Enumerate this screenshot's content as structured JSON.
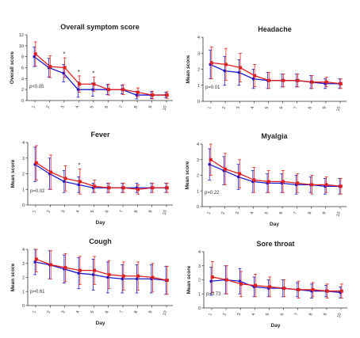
{
  "colors": {
    "series1": "#1c1ccc",
    "series2": "#e02020",
    "axis": "#333333"
  },
  "chart_data": [
    {
      "type": "line",
      "title": "Overall symptom score",
      "xlabel": "",
      "ylabel": "Overall score",
      "ylim": [
        0,
        12
      ],
      "yticks": [
        0,
        2,
        4,
        6,
        8,
        10,
        12
      ],
      "x": [
        1,
        2,
        3,
        4,
        5,
        6,
        7,
        8,
        9,
        10
      ],
      "series": [
        {
          "values": [
            8,
            6,
            5,
            2,
            2,
            2,
            2,
            1,
            1,
            1
          ],
          "err": [
            1.8,
            1.7,
            1.6,
            1.4,
            1.2,
            0.9,
            0.8,
            0.7,
            0.6,
            0.5
          ]
        },
        {
          "values": [
            8.5,
            6.2,
            6,
            3,
            3,
            2,
            2,
            1.5,
            1,
            1
          ],
          "err": [
            2.2,
            2.0,
            1.8,
            1.5,
            1.3,
            1.0,
            0.9,
            0.8,
            0.7,
            0.6
          ]
        }
      ],
      "pvalue": "p<0.05",
      "annotations": [
        {
          "x": 3,
          "text": "*"
        },
        {
          "x": 4,
          "text": "*"
        },
        {
          "x": 5,
          "text": "*"
        }
      ]
    },
    {
      "type": "line",
      "title": "Headache",
      "xlabel": "",
      "ylabel": "Mean score",
      "ylim": [
        0,
        4
      ],
      "yticks": [
        0,
        1,
        2,
        3,
        4
      ],
      "x": [
        1,
        2,
        3,
        4,
        5,
        6,
        7,
        8,
        9,
        10
      ],
      "series": [
        {
          "values": [
            2.3,
            1.9,
            1.8,
            1.4,
            1.3,
            1.3,
            1.3,
            1.2,
            1.1,
            1.1
          ],
          "err": [
            0.9,
            0.9,
            0.8,
            0.6,
            0.5,
            0.4,
            0.4,
            0.4,
            0.3,
            0.3
          ]
        },
        {
          "values": [
            2.4,
            2.3,
            2.1,
            1.6,
            1.3,
            1.3,
            1.3,
            1.2,
            1.2,
            1.1
          ],
          "err": [
            1.0,
            1.0,
            0.9,
            0.7,
            0.5,
            0.4,
            0.4,
            0.4,
            0.3,
            0.3
          ]
        }
      ],
      "pvalue": "p=0.01",
      "annotations": []
    },
    {
      "type": "line",
      "title": "Fever",
      "xlabel": "Day",
      "ylabel": "Mean score",
      "ylim": [
        0,
        4
      ],
      "yticks": [
        0,
        1,
        2,
        3,
        4
      ],
      "x": [
        1,
        2,
        3,
        4,
        5,
        6,
        7,
        8,
        9,
        10
      ],
      "series": [
        {
          "values": [
            2.6,
            2.0,
            1.5,
            1.3,
            1.1,
            1.1,
            1.1,
            1.1,
            1.1,
            1.1
          ],
          "err": [
            1.1,
            1.0,
            0.7,
            0.5,
            0.3,
            0.3,
            0.3,
            0.3,
            0.3,
            0.3
          ]
        },
        {
          "values": [
            2.7,
            2.1,
            1.7,
            1.5,
            1.2,
            1.1,
            1.1,
            1.0,
            1.1,
            1.1
          ],
          "err": [
            1.1,
            1.1,
            0.8,
            0.8,
            0.4,
            0.3,
            0.3,
            0.3,
            0.3,
            0.3
          ]
        }
      ],
      "pvalue": "p=0.02",
      "annotations": [
        {
          "x": 4,
          "text": "*"
        }
      ]
    },
    {
      "type": "line",
      "title": "Myalgia",
      "xlabel": "Day",
      "ylabel": "Mean score",
      "ylim": [
        0,
        4
      ],
      "yticks": [
        0,
        1,
        2,
        3,
        4
      ],
      "x": [
        1,
        2,
        3,
        4,
        5,
        6,
        7,
        8,
        9,
        10
      ],
      "series": [
        {
          "values": [
            2.7,
            2.3,
            1.9,
            1.6,
            1.5,
            1.5,
            1.4,
            1.4,
            1.3,
            1.3
          ],
          "err": [
            1.0,
            0.9,
            0.8,
            0.7,
            0.6,
            0.6,
            0.6,
            0.5,
            0.5,
            0.5
          ]
        },
        {
          "values": [
            3.0,
            2.4,
            2.1,
            1.7,
            1.6,
            1.6,
            1.5,
            1.4,
            1.4,
            1.3
          ],
          "err": [
            1.0,
            1.0,
            0.9,
            0.8,
            0.7,
            0.7,
            0.6,
            0.6,
            0.5,
            0.5
          ]
        }
      ],
      "pvalue": "p=0.22",
      "annotations": []
    },
    {
      "type": "line",
      "title": "Cough",
      "xlabel": "Day",
      "ylabel": "Mean score",
      "ylim": [
        0,
        4
      ],
      "yticks": [
        0,
        1,
        2,
        3,
        4
      ],
      "x": [
        1,
        2,
        3,
        4,
        5,
        6,
        7,
        8,
        9,
        10
      ],
      "series": [
        {
          "values": [
            3.1,
            2.9,
            2.6,
            2.3,
            2.2,
            2.0,
            1.9,
            1.9,
            1.9,
            1.8
          ],
          "err": [
            0.9,
            1.0,
            1.0,
            1.1,
            1.1,
            1.1,
            1.0,
            1.0,
            1.0,
            1.0
          ]
        },
        {
          "values": [
            3.3,
            2.9,
            2.7,
            2.5,
            2.5,
            2.2,
            2.1,
            2.1,
            2.0,
            1.8
          ],
          "err": [
            0.9,
            1.0,
            1.0,
            1.0,
            1.0,
            1.0,
            1.0,
            1.0,
            1.0,
            1.0
          ]
        }
      ],
      "pvalue": "p=0.61",
      "annotations": []
    },
    {
      "type": "line",
      "title": "Sore throat",
      "xlabel": "Day",
      "ylabel": "Mean score",
      "ylim": [
        0,
        4
      ],
      "yticks": [
        0,
        1,
        2,
        3,
        4
      ],
      "x": [
        1,
        2,
        3,
        4,
        5,
        6,
        7,
        8,
        9,
        10
      ],
      "series": [
        {
          "values": [
            1.9,
            2.0,
            1.9,
            1.5,
            1.4,
            1.4,
            1.3,
            1.2,
            1.2,
            1.1
          ],
          "err": [
            1.0,
            1.0,
            0.9,
            0.7,
            0.6,
            0.6,
            0.5,
            0.5,
            0.4,
            0.4
          ]
        },
        {
          "values": [
            2.2,
            2.0,
            1.7,
            1.6,
            1.5,
            1.4,
            1.3,
            1.3,
            1.2,
            1.2
          ],
          "err": [
            1.1,
            1.0,
            0.9,
            0.8,
            0.7,
            0.6,
            0.6,
            0.5,
            0.5,
            0.5
          ]
        }
      ],
      "pvalue": "p=0.73",
      "annotations": []
    }
  ]
}
